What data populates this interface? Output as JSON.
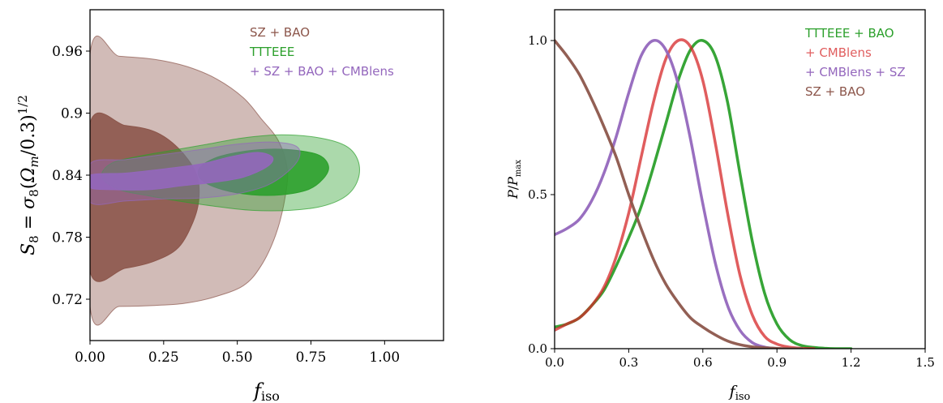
{
  "chart_data": [
    {
      "type": "contour",
      "xlabel": "f_iso",
      "ylabel": "S_8 = σ_8(Ω_m/0.3)^{1/2}",
      "xlim": [
        0.0,
        1.2
      ],
      "ylim": [
        0.68,
        1.0
      ],
      "x_ticks": [
        "0.00",
        "0.25",
        "0.50",
        "0.75",
        "1.00"
      ],
      "y_ticks": [
        "0.72",
        "0.78",
        "0.84",
        "0.9",
        "0.96"
      ],
      "legend_position": "top-right",
      "series": [
        {
          "name": "SZ + BAO",
          "color": "#8c564b",
          "contour_68": [
            [
              0.0,
              0.747
            ],
            [
              0.12,
              0.75
            ],
            [
              0.22,
              0.757
            ],
            [
              0.3,
              0.77
            ],
            [
              0.35,
              0.795
            ],
            [
              0.37,
              0.818
            ],
            [
              0.36,
              0.842
            ],
            [
              0.3,
              0.866
            ],
            [
              0.22,
              0.882
            ],
            [
              0.12,
              0.888
            ],
            [
              0.0,
              0.89
            ]
          ],
          "contour_95": [
            [
              0.0,
              0.713
            ],
            [
              0.1,
              0.713
            ],
            [
              0.22,
              0.714
            ],
            [
              0.32,
              0.716
            ],
            [
              0.42,
              0.722
            ],
            [
              0.52,
              0.733
            ],
            [
              0.58,
              0.752
            ],
            [
              0.63,
              0.782
            ],
            [
              0.66,
              0.815
            ],
            [
              0.67,
              0.845
            ],
            [
              0.64,
              0.873
            ],
            [
              0.58,
              0.895
            ],
            [
              0.52,
              0.915
            ],
            [
              0.43,
              0.933
            ],
            [
              0.33,
              0.945
            ],
            [
              0.22,
              0.952
            ],
            [
              0.1,
              0.955
            ],
            [
              0.0,
              0.957
            ]
          ]
        },
        {
          "name": "TTTEEE",
          "color": "#2ca02c",
          "contour_68": [
            [
              0.38,
              0.835
            ],
            [
              0.45,
              0.826
            ],
            [
              0.55,
              0.821
            ],
            [
              0.65,
              0.821
            ],
            [
              0.74,
              0.826
            ],
            [
              0.79,
              0.836
            ],
            [
              0.81,
              0.848
            ],
            [
              0.78,
              0.859
            ],
            [
              0.7,
              0.864
            ],
            [
              0.6,
              0.865
            ],
            [
              0.5,
              0.862
            ],
            [
              0.42,
              0.856
            ],
            [
              0.37,
              0.846
            ]
          ],
          "contour_95": [
            [
              0.04,
              0.838
            ],
            [
              0.1,
              0.826
            ],
            [
              0.2,
              0.82
            ],
            [
              0.3,
              0.815
            ],
            [
              0.42,
              0.81
            ],
            [
              0.55,
              0.806
            ],
            [
              0.68,
              0.806
            ],
            [
              0.79,
              0.81
            ],
            [
              0.87,
              0.82
            ],
            [
              0.91,
              0.836
            ],
            [
              0.91,
              0.854
            ],
            [
              0.87,
              0.868
            ],
            [
              0.78,
              0.876
            ],
            [
              0.65,
              0.879
            ],
            [
              0.52,
              0.876
            ],
            [
              0.4,
              0.87
            ],
            [
              0.28,
              0.864
            ],
            [
              0.16,
              0.858
            ],
            [
              0.07,
              0.851
            ]
          ]
        },
        {
          "name": "+ SZ + BAO + CMBlens",
          "color": "#9467bd",
          "contour_68": [
            [
              0.0,
              0.828
            ],
            [
              0.08,
              0.826
            ],
            [
              0.2,
              0.826
            ],
            [
              0.32,
              0.83
            ],
            [
              0.42,
              0.833
            ],
            [
              0.52,
              0.838
            ],
            [
              0.6,
              0.848
            ],
            [
              0.62,
              0.857
            ],
            [
              0.57,
              0.862
            ],
            [
              0.48,
              0.858
            ],
            [
              0.38,
              0.851
            ],
            [
              0.25,
              0.846
            ],
            [
              0.12,
              0.842
            ],
            [
              0.0,
              0.84
            ]
          ],
          "contour_95": [
            [
              0.0,
              0.814
            ],
            [
              0.12,
              0.815
            ],
            [
              0.25,
              0.817
            ],
            [
              0.38,
              0.818
            ],
            [
              0.5,
              0.822
            ],
            [
              0.6,
              0.83
            ],
            [
              0.67,
              0.843
            ],
            [
              0.71,
              0.857
            ],
            [
              0.7,
              0.868
            ],
            [
              0.62,
              0.872
            ],
            [
              0.5,
              0.87
            ],
            [
              0.38,
              0.865
            ],
            [
              0.25,
              0.86
            ],
            [
              0.12,
              0.855
            ],
            [
              0.0,
              0.851
            ]
          ]
        }
      ]
    },
    {
      "type": "line",
      "xlabel": "f_iso",
      "ylabel": "P/P_max",
      "xlim": [
        0.0,
        1.5
      ],
      "ylim": [
        0.0,
        1.1
      ],
      "x_ticks": [
        "0.0",
        "0.3",
        "0.6",
        "0.9",
        "1.2",
        "1.5"
      ],
      "y_ticks": [
        "0.0",
        "0.5",
        "1.0"
      ],
      "legend_position": "top-right",
      "series": [
        {
          "name": "TTTEEE + BAO",
          "color": "#2ca02c",
          "x": [
            0.0,
            0.05,
            0.1,
            0.15,
            0.2,
            0.25,
            0.3,
            0.35,
            0.4,
            0.45,
            0.5,
            0.55,
            0.6,
            0.65,
            0.7,
            0.75,
            0.8,
            0.85,
            0.9,
            0.95,
            1.0,
            1.05,
            1.1,
            1.15,
            1.2
          ],
          "y": [
            0.07,
            0.08,
            0.1,
            0.14,
            0.19,
            0.27,
            0.36,
            0.46,
            0.59,
            0.73,
            0.87,
            0.97,
            1.0,
            0.95,
            0.8,
            0.57,
            0.35,
            0.18,
            0.08,
            0.03,
            0.01,
            0.004,
            0.001,
            0.0,
            0.0
          ]
        },
        {
          "name": "+ CMBlens",
          "color": "#d62728",
          "x": [
            0.0,
            0.05,
            0.1,
            0.15,
            0.2,
            0.25,
            0.3,
            0.35,
            0.4,
            0.45,
            0.5,
            0.55,
            0.6,
            0.65,
            0.7,
            0.75,
            0.8,
            0.85,
            0.9,
            0.95,
            1.0,
            1.05
          ],
          "y": [
            0.06,
            0.08,
            0.1,
            0.14,
            0.2,
            0.3,
            0.44,
            0.62,
            0.8,
            0.94,
            1.0,
            0.98,
            0.87,
            0.67,
            0.44,
            0.24,
            0.11,
            0.04,
            0.015,
            0.005,
            0.001,
            0.0
          ]
        },
        {
          "name": "+ CMBlens + SZ",
          "color": "#9467bd",
          "x": [
            0.0,
            0.05,
            0.1,
            0.15,
            0.2,
            0.25,
            0.3,
            0.35,
            0.4,
            0.45,
            0.5,
            0.55,
            0.6,
            0.65,
            0.7,
            0.75,
            0.8,
            0.85,
            0.9
          ],
          "y": [
            0.37,
            0.39,
            0.42,
            0.48,
            0.57,
            0.69,
            0.83,
            0.95,
            1.0,
            0.97,
            0.86,
            0.68,
            0.47,
            0.28,
            0.14,
            0.06,
            0.02,
            0.005,
            0.0
          ]
        },
        {
          "name": "SZ + BAO",
          "color": "#8c564b",
          "x": [
            0.0,
            0.05,
            0.1,
            0.15,
            0.2,
            0.25,
            0.3,
            0.35,
            0.4,
            0.45,
            0.5,
            0.55,
            0.6,
            0.65,
            0.7,
            0.75,
            0.8,
            0.85,
            0.9,
            0.95,
            1.0
          ],
          "y": [
            1.0,
            0.95,
            0.89,
            0.81,
            0.72,
            0.62,
            0.5,
            0.39,
            0.29,
            0.21,
            0.15,
            0.1,
            0.07,
            0.045,
            0.025,
            0.013,
            0.006,
            0.003,
            0.001,
            0.0,
            0.0
          ]
        }
      ]
    }
  ],
  "colors": {
    "sz_bao": "#8c564b",
    "ttteee": "#2ca02c",
    "cmblens": "#d62728",
    "combined": "#9467bd"
  }
}
